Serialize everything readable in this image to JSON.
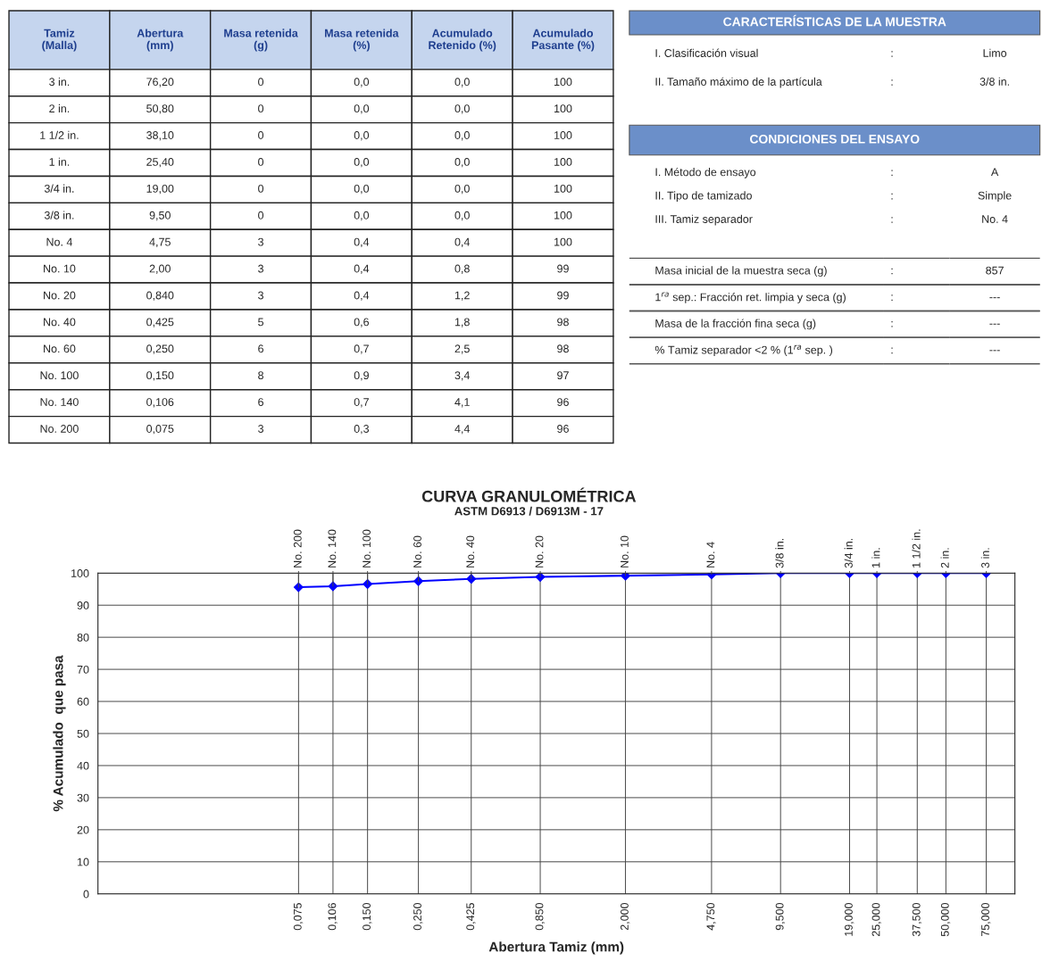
{
  "chart_data": [
    {
      "type": "other",
      "categories": [
        "Tamiz\n(Malla)",
        "Abertura\n(mm)",
        "Masa retenida\n(g)",
        "Masa retenida\n(%)",
        "Acumulado\nRetenido (%)",
        "Acumulado\nPasante (%)"
      ],
      "annotations": [
        "3 in.",
        "76,20",
        "0",
        "0,0",
        "0,0",
        "100",
        "2 in.",
        "50,80",
        "0",
        "0,0",
        "0,0",
        "100",
        "1 1/2 in.",
        "38,10",
        "0",
        "0,0",
        "0,0",
        "100",
        "1 in.",
        "25,40",
        "0",
        "0,0",
        "0,0",
        "100",
        "3/4 in.",
        "19,00",
        "0",
        "0,0",
        "0,0",
        "100",
        "3/8 in.",
        "9,50",
        "0",
        "0,0",
        "0,0",
        "100",
        "No. 4",
        "4,75",
        "3",
        "0,4",
        "0,4",
        "100",
        "No. 10",
        "2,00",
        "3",
        "0,4",
        "0,8",
        "99",
        "No. 20",
        "0,840",
        "3",
        "0,4",
        "1,2",
        "99",
        "No. 40",
        "0,425",
        "5",
        "0,6",
        "1,8",
        "98",
        "No. 60",
        "0,250",
        "6",
        "0,7",
        "2,5",
        "98",
        "No. 100",
        "0,150",
        "8",
        "0,9",
        "3,4",
        "97",
        "No. 140",
        "0,106",
        "6",
        "0,7",
        "4,1",
        "96",
        "No. 200",
        "0,075",
        "3",
        "0,3",
        "4,4",
        "96"
      ]
    },
    {
      "type": "other",
      "title": "CARACTERÍSTICAS DE LA MUESTRA",
      "annotations": [
        "I. Clasificación visual",
        ":",
        "Limo",
        "II. Tamaño máximo de la partícula",
        ":",
        "3/8 in."
      ]
    },
    {
      "type": "other",
      "title": "CONDICIONES DEL ENSAYO",
      "annotations": [
        "I. Método de ensayo",
        ":",
        "A",
        "II. Tipo de tamizado",
        ":",
        "Simple",
        "III. Tamiz separador",
        ":",
        "No. 4"
      ]
    },
    {
      "type": "other",
      "annotations": [
        "Masa inicial de la muestra seca (g)",
        ":",
        "857",
        "1$^{ra}$ sep.: Fracción ret. limpia y seca (g)",
        ":",
        "---",
        "Masa de la fracción fina seca (g)",
        ":",
        "---",
        "% Tamiz separador <2 % (1$^{ra}$ sep. )",
        ":",
        "---"
      ]
    },
    {
      "type": "line",
      "title": "CURVA GRANULOMÉTRICA",
      "subtitle": "ASTM D6913 / D6913M - 17",
      "xlabel": "Abertura Tamiz (mm)",
      "ylabel": "% Acumulado  que pasa",
      "log": "x",
      "grid": true,
      "marker": "diamond",
      "line_style": "solid",
      "xlim": [
        0.01,
        100
      ],
      "ylim": [
        0,
        100
      ],
      "yticks": [
        0,
        10,
        20,
        30,
        40,
        50,
        60,
        70,
        80,
        90,
        100
      ],
      "xticks": [
        {
          "value": 0.075,
          "label": "0,075"
        },
        {
          "value": 0.106,
          "label": "0,106"
        },
        {
          "value": 0.15,
          "label": "0,150"
        },
        {
          "value": 0.25,
          "label": "0,250"
        },
        {
          "value": 0.425,
          "label": "0,425"
        },
        {
          "value": 0.85,
          "label": "0,850"
        },
        {
          "value": 2,
          "label": "2,000"
        },
        {
          "value": 4.75,
          "label": "4,750"
        },
        {
          "value": 9.5,
          "label": "9,500"
        },
        {
          "value": 19,
          "label": "19,000"
        },
        {
          "value": 25,
          "label": "25,000"
        },
        {
          "value": 37.5,
          "label": "37,500"
        },
        {
          "value": 50,
          "label": "50,000"
        },
        {
          "value": 75,
          "label": "75,000"
        }
      ],
      "annotations": [
        {
          "text": "No. 200",
          "x": 0.075,
          "y": 95.6
        },
        {
          "text": "No. 140",
          "x": 0.106,
          "y": 95.9
        },
        {
          "text": "No. 100",
          "x": 0.15,
          "y": 96.6
        },
        {
          "text": "No. 60",
          "x": 0.25,
          "y": 97.5
        },
        {
          "text": "No. 40",
          "x": 0.425,
          "y": 98.2
        },
        {
          "text": "No. 20",
          "x": 0.85,
          "y": 98.8
        },
        {
          "text": "No. 10",
          "x": 2,
          "y": 99.2
        },
        {
          "text": "No. 4",
          "x": 4.75,
          "y": 99.6
        },
        {
          "text": "3/8 in.",
          "x": 9.5,
          "y": 100
        },
        {
          "text": "3/4 in.",
          "x": 19,
          "y": 100
        },
        {
          "text": "1 in.",
          "x": 25,
          "y": 100
        },
        {
          "text": "1 1/2 in.",
          "x": 37.5,
          "y": 100
        },
        {
          "text": "2 in.",
          "x": 50,
          "y": 100
        },
        {
          "text": "3 in.",
          "x": 75,
          "y": 100
        }
      ],
      "x": [
        0.075,
        0.106,
        0.15,
        0.25,
        0.425,
        0.85,
        2,
        4.75,
        9.5,
        19,
        25,
        37.5,
        50,
        75
      ],
      "series": [
        {
          "color": "#0000ff",
          "values": [
            95.6,
            95.9,
            96.6,
            97.5,
            98.2,
            98.8,
            99.2,
            99.6,
            100,
            100,
            100,
            100,
            100,
            100
          ]
        }
      ]
    }
  ]
}
